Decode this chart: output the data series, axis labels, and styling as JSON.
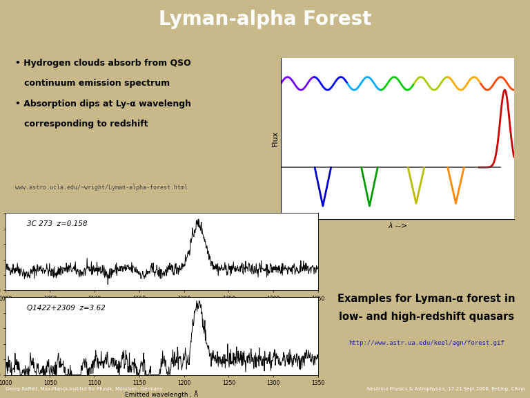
{
  "title": "Lyman-alpha Forest",
  "title_color": "#FFFFFF",
  "title_bg_color": "#5B7BAA",
  "background_color": "#C8B98A",
  "bullet1_line1": "• Hydrogen clouds absorb from QSO",
  "bullet1_line2": "   continuum emission spectrum",
  "bullet2_line1": "• Absorption dips at Ly-α wavelengh",
  "bullet2_line2": "   corresponding to redshift",
  "url_top": "www.astro.ucla.edu/~wright/Lyman-alpha-forest.html",
  "box_left_bg": "#BEBEBE",
  "examples_text_line1": "Examples for Lyman-α forest in",
  "examples_text_line2": "low- and high-redshift quasars",
  "examples_url": "http://www.astr.ua.edu/keel/agn/forest.gif",
  "examples_bg": "#DCDCDC",
  "footer_left": "Georg Raffelt, Max-Planck-Institut für Physik, München, Germany",
  "footer_right": "Neutrino Physics & Astrophysics, 17-21 Sept 2008, Beijing, China",
  "footer_bg": "#1E1E4A",
  "footer_color": "#FFFFFF",
  "spec1_label": "3C 273  z=0.158",
  "spec2_label": "Q1422+2309  z=3.62"
}
